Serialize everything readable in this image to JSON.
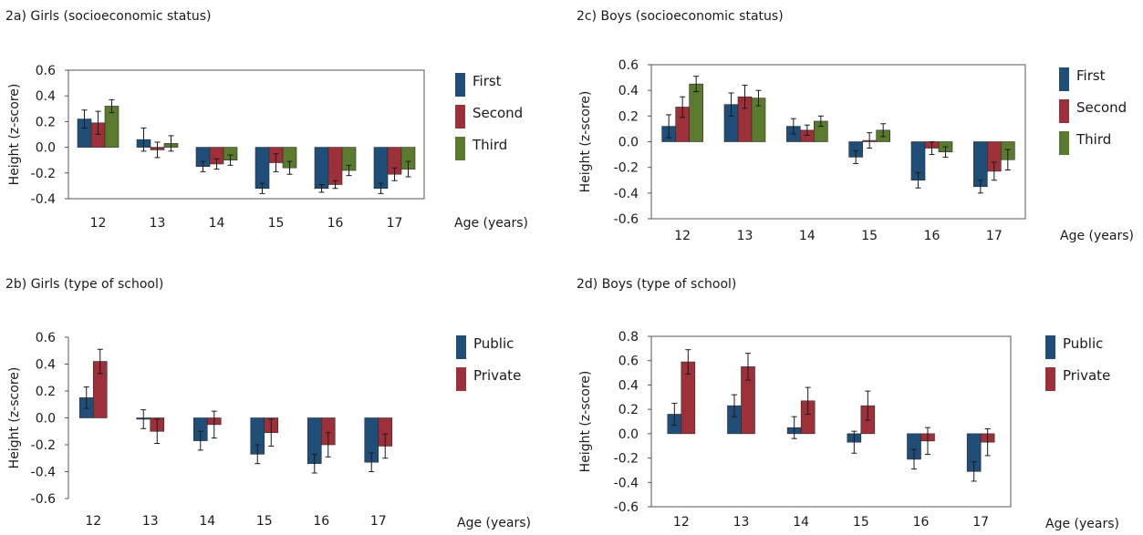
{
  "colors": {
    "first": "#1f4e79",
    "second": "#9e3039",
    "third": "#5a7a2e"
  },
  "chart_data": [
    {
      "id": "2a",
      "type": "bar",
      "title": "2a) Girls (socioeconomic status)",
      "ylabel": "Height (z-score)",
      "xlabel": "Age (years)",
      "categories": [
        "12",
        "13",
        "14",
        "15",
        "16",
        "17"
      ],
      "ylim": [
        -0.4,
        0.6
      ],
      "yticks": [
        0.6,
        0.4,
        0.2,
        0.0,
        -0.2,
        -0.4
      ],
      "ytick_labels": [
        "0.6",
        "0.4",
        "0.2",
        "0.0",
        "-0.2",
        "-0.4"
      ],
      "frame": "box",
      "legend": "right",
      "series": [
        {
          "name": "First",
          "values": [
            0.22,
            0.06,
            -0.15,
            -0.32,
            -0.32,
            -0.32
          ],
          "errors": [
            0.07,
            0.09,
            0.04,
            0.04,
            0.03,
            0.04
          ]
        },
        {
          "name": "Second",
          "values": [
            0.19,
            -0.02,
            -0.13,
            -0.12,
            -0.29,
            -0.21
          ],
          "errors": [
            0.09,
            0.06,
            0.04,
            0.07,
            0.03,
            0.05
          ]
        },
        {
          "name": "Third",
          "values": [
            0.32,
            0.03,
            -0.1,
            -0.16,
            -0.18,
            -0.17
          ],
          "errors": [
            0.05,
            0.06,
            0.04,
            0.05,
            0.04,
            0.06
          ]
        }
      ]
    },
    {
      "id": "2c",
      "type": "bar",
      "title": "2c) Boys (socioeconomic status)",
      "ylabel": "Height (z-score)",
      "xlabel": "Age (years)",
      "categories": [
        "12",
        "13",
        "14",
        "15",
        "16",
        "17"
      ],
      "ylim": [
        -0.6,
        0.6
      ],
      "yticks": [
        0.6,
        0.4,
        0.2,
        0.0,
        -0.2,
        -0.4,
        -0.6
      ],
      "ytick_labels": [
        "0.6",
        "0.4",
        "0.2",
        "0.0",
        "-0.2",
        "-0.4",
        "-0.6"
      ],
      "frame": "box",
      "legend": "right",
      "series": [
        {
          "name": "First",
          "values": [
            0.12,
            0.29,
            0.12,
            -0.12,
            -0.3,
            -0.35
          ],
          "errors": [
            0.09,
            0.09,
            0.06,
            0.05,
            0.06,
            0.05
          ]
        },
        {
          "name": "Second",
          "values": [
            0.27,
            0.35,
            0.09,
            0.01,
            -0.05,
            -0.23
          ],
          "errors": [
            0.08,
            0.09,
            0.04,
            0.06,
            0.05,
            0.07
          ]
        },
        {
          "name": "Third",
          "values": [
            0.45,
            0.34,
            0.16,
            0.09,
            -0.08,
            -0.14
          ],
          "errors": [
            0.06,
            0.06,
            0.04,
            0.05,
            0.04,
            0.08
          ]
        }
      ]
    },
    {
      "id": "2b",
      "type": "bar",
      "title": "2b) Girls (type of school)",
      "ylabel": "Height (z-score)",
      "xlabel": "Age (years)",
      "categories": [
        "12",
        "13",
        "14",
        "15",
        "16",
        "17"
      ],
      "ylim": [
        -0.6,
        0.6
      ],
      "yticks": [
        0.6,
        0.4,
        0.2,
        0.0,
        -0.2,
        -0.4,
        -0.6
      ],
      "ytick_labels": [
        "0.6",
        "0.4",
        "0.2",
        "0.0",
        "-0.2",
        "-0.4",
        "-0.6"
      ],
      "frame": "none",
      "legend": "right",
      "series": [
        {
          "name": "Public",
          "values": [
            0.15,
            -0.01,
            -0.17,
            -0.27,
            -0.34,
            -0.33
          ],
          "errors": [
            0.08,
            0.07,
            0.07,
            0.07,
            0.07,
            0.07
          ]
        },
        {
          "name": "Private",
          "values": [
            0.42,
            -0.1,
            -0.05,
            -0.11,
            -0.2,
            -0.21
          ],
          "errors": [
            0.09,
            0.09,
            0.1,
            0.1,
            0.09,
            0.09
          ]
        }
      ]
    },
    {
      "id": "2d",
      "type": "bar",
      "title": "2d) Boys (type of school)",
      "ylabel": "Height (z-score)",
      "xlabel": "Age (years)",
      "categories": [
        "12",
        "13",
        "14",
        "15",
        "16",
        "17"
      ],
      "ylim": [
        -0.6,
        0.8
      ],
      "yticks": [
        0.8,
        0.6,
        0.4,
        0.2,
        0.0,
        -0.2,
        -0.4,
        -0.6
      ],
      "ytick_labels": [
        "0.8",
        "0.6",
        "0.4",
        "0.2",
        "0.0",
        "-0.2",
        "-0.4",
        "-0.6"
      ],
      "frame": "box",
      "legend": "right",
      "series": [
        {
          "name": "Public",
          "values": [
            0.16,
            0.23,
            0.05,
            -0.07,
            -0.21,
            -0.31
          ],
          "errors": [
            0.09,
            0.09,
            0.09,
            0.09,
            0.08,
            0.08
          ]
        },
        {
          "name": "Private",
          "values": [
            0.59,
            0.55,
            0.27,
            0.23,
            -0.06,
            -0.07
          ],
          "errors": [
            0.1,
            0.11,
            0.11,
            0.12,
            0.11,
            0.11
          ]
        }
      ]
    }
  ]
}
